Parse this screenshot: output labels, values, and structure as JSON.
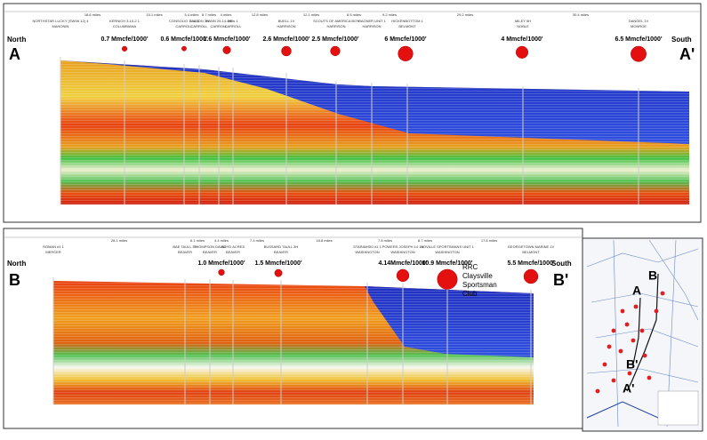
{
  "panel_a": {
    "north": "North",
    "start": "A",
    "south": "South",
    "end": "A'",
    "distances": [
      "18.6 miles",
      "15.1 miles",
      "5.4 miles",
      "8.7 miles",
      "4 miles",
      "12.8 miles",
      "12.1 miles",
      "8.5 miles",
      "9.2 miles",
      "29.2 miles",
      "30.4 miles"
    ],
    "wells": [
      {
        "name": "NORTHSTAR LUCKY (SWIW 12) 4",
        "county": "MAHONIN"
      },
      {
        "name": "KERNICH 3-10-2 1",
        "county": "COLUMBIANA"
      },
      {
        "name": "CONSOLIO 7-14-5",
        "county": "CARROLL"
      },
      {
        "name": "WILSON 3H",
        "county": "CARROLL"
      },
      {
        "name": "HANN 29-14-5H",
        "county": "CARROLL"
      },
      {
        "name": "Mills 1",
        "county": "CARROLL"
      },
      {
        "name": "BUELL 1V",
        "county": "HARRISON"
      },
      {
        "name": "SCOUTS OF AMERICA BOY",
        "county": "HARRISON"
      },
      {
        "name": "WAGNER UNIT 1",
        "county": "HARRISON"
      },
      {
        "name": "HICKENBOTTOM 1",
        "county": "BELMONT"
      },
      {
        "name": "MILEY 5H",
        "county": "NOBLE"
      },
      {
        "name": "DANGEL 1V",
        "county": "MONROE"
      }
    ],
    "production": [
      {
        "label": "0.7 Mmcfe/1000'",
        "value": 0.7
      },
      {
        "label": "0.6 Mmcfe/1000'",
        "value": 0.6
      },
      {
        "label": "1.6 Mmcfe/1000'",
        "value": 1.6
      },
      {
        "label": "2.6 Mmcfe/1000'",
        "value": 2.6
      },
      {
        "label": "2.5 Mmcfe/1000'",
        "value": 2.5
      },
      {
        "label": "6 Mmcfe/1000'",
        "value": 6
      },
      {
        "label": "4 Mmcfe/1000'",
        "value": 4
      },
      {
        "label": "6.5 Mmcfe/1000'",
        "value": 6.5
      }
    ]
  },
  "panel_b": {
    "north": "North",
    "start": "B",
    "south": "South",
    "end": "B'",
    "distances": [
      "28.1 miles",
      "6.1 miles",
      "4.4 miles",
      "7.4 miles",
      "18.8 miles",
      "7.8 miles",
      "8.7 miles",
      "17.8 miles"
    ],
    "wells": [
      {
        "name": "ROMAN #1 1",
        "county": "MERCER"
      },
      {
        "name": "BAE TAULL 5H",
        "county": "BEAVER"
      },
      {
        "name": "THOMPSON DAVID",
        "county": "BEAVER"
      },
      {
        "name": "BOYD ACRES",
        "county": "BEAVER"
      },
      {
        "name": "BUSSARD TAULL 3H",
        "county": "BEAVER"
      },
      {
        "name": "STARAMSKI #1 1",
        "county": "WASHINGTON"
      },
      {
        "name": "POWERS JOSEPH 14 1H",
        "county": "WASHINGTON"
      },
      {
        "name": "NOVILLE SPORTSMANS UNIT 1",
        "county": "WASHINGTON"
      },
      {
        "name": "GEORGETOWN MARINE 1V",
        "county": "BELMONT"
      }
    ],
    "production": [
      {
        "label": "1.0 Mmcfe/1000'",
        "value": 1.0
      },
      {
        "label": "1.5 Mmcfe/1000'",
        "value": 1.5
      },
      {
        "label": "4.14Mmcfe/1000'",
        "value": 4.14
      },
      {
        "label": "10.9 Mmcfe/1000'",
        "value": 10.9
      },
      {
        "label": "5.5 Mmcfe/1000'",
        "value": 5.5
      }
    ],
    "note": "RRC Claysville Sportsman Club"
  },
  "map": {
    "labels": [
      "A",
      "A'",
      "B",
      "B'"
    ]
  }
}
